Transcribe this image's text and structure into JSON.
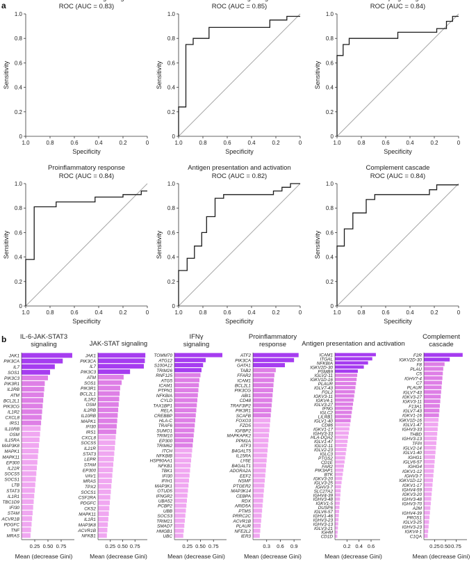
{
  "panel_labels": [
    "a",
    "b"
  ],
  "colors": {
    "roc_line": "#1a1a1a",
    "diagonal": "#a6a6a6",
    "axis": "#333333",
    "bar_top": "#a63cf0",
    "bar_mid": "#de7fe6",
    "bar_low": "#f0a7f1"
  },
  "chart_data": [
    {
      "type": "line",
      "id": "roc-1",
      "title": "IL-6-JAK-STAT3 signaling",
      "subtitle": "ROC (AUC = 0.83)",
      "xlabel": "Specificity",
      "ylabel": "Sensitivity",
      "xlim": [
        1.0,
        0.0
      ],
      "ylim": [
        0,
        1
      ],
      "xticks": [
        "1.0",
        "0.8",
        "0.6",
        "0.4",
        "0.2",
        "0"
      ],
      "yticks": [
        "0",
        "0.2",
        "0.4",
        "0.6",
        "0.8",
        "1.0"
      ],
      "points": []
    },
    {
      "type": "line",
      "id": "roc-2",
      "title": "JAK-STAT signaling",
      "subtitle": "ROC (AUC = 0.85)",
      "xlabel": "Specificity",
      "ylabel": "Sensitivity",
      "xlim": [
        1.0,
        0.0
      ],
      "ylim": [
        0,
        1
      ],
      "xticks": [
        "1.0",
        "0.8",
        "0.6",
        "0.4",
        "0.2",
        "0"
      ],
      "yticks": [
        "0",
        "0.2",
        "0.4",
        "0.6",
        "0.8",
        "1.0"
      ],
      "points": [
        [
          1.0,
          0
        ],
        [
          1.0,
          0.24
        ],
        [
          0.94,
          0.24
        ],
        [
          0.94,
          0.75
        ],
        [
          0.88,
          0.75
        ],
        [
          0.88,
          0.8
        ],
        [
          0.75,
          0.8
        ],
        [
          0.75,
          0.89
        ],
        [
          0.25,
          0.89
        ],
        [
          0.25,
          0.95
        ],
        [
          0.11,
          0.95
        ],
        [
          0.11,
          0.98
        ],
        [
          0,
          0.98
        ]
      ]
    },
    {
      "type": "line",
      "id": "roc-3",
      "title": "IFNγ signaling",
      "subtitle": "ROC (AUC = 0.84)",
      "xlabel": "Specificity",
      "ylabel": "Sensitivity",
      "xlim": [
        1.0,
        0.0
      ],
      "ylim": [
        0,
        1
      ],
      "xticks": [
        "1.0",
        "0.8",
        "0.6",
        "0.4",
        "0.2",
        "0"
      ],
      "yticks": [
        "0",
        "0.2",
        "0.4",
        "0.6",
        "0.8",
        "1.0"
      ],
      "points": [
        [
          1.0,
          0
        ],
        [
          1.0,
          0.66
        ],
        [
          0.95,
          0.66
        ],
        [
          0.95,
          0.75
        ],
        [
          0.9,
          0.75
        ],
        [
          0.9,
          0.8
        ],
        [
          0.5,
          0.8
        ],
        [
          0.5,
          0.85
        ],
        [
          0.18,
          0.85
        ],
        [
          0.18,
          0.88
        ],
        [
          0.1,
          0.88
        ],
        [
          0.1,
          0.94
        ],
        [
          0.05,
          0.94
        ],
        [
          0.05,
          0.98
        ],
        [
          0,
          0.98
        ]
      ]
    },
    {
      "type": "line",
      "id": "roc-4",
      "title": "Proinflammatory response",
      "subtitle": "ROC (AUC = 0.84)",
      "xlabel": "Specificity",
      "ylabel": "Sensitivity",
      "xlim": [
        1.0,
        0.0
      ],
      "ylim": [
        0,
        1
      ],
      "xticks": [
        "1.0",
        "0.8",
        "0.6",
        "0.4",
        "0.2",
        "0"
      ],
      "yticks": [
        "0",
        "0.2",
        "0.4",
        "0.6",
        "0.8",
        "1.0"
      ],
      "points": [
        [
          1.0,
          0
        ],
        [
          1.0,
          0.38
        ],
        [
          0.93,
          0.38
        ],
        [
          0.93,
          0.81
        ],
        [
          0.75,
          0.81
        ],
        [
          0.75,
          0.85
        ],
        [
          0.43,
          0.85
        ],
        [
          0.43,
          0.89
        ],
        [
          0.2,
          0.89
        ],
        [
          0.2,
          0.91
        ],
        [
          0.05,
          0.91
        ],
        [
          0.05,
          0.94
        ],
        [
          0,
          0.94
        ]
      ]
    },
    {
      "type": "line",
      "id": "roc-5",
      "title": "Antigen presentation and activation",
      "subtitle": "ROC (AUC = 0.82)",
      "xlabel": "Specificity",
      "ylabel": "Sensitivity",
      "xlim": [
        1.0,
        0.0
      ],
      "ylim": [
        0,
        1
      ],
      "xticks": [
        "1.0",
        "0.8",
        "0.6",
        "0.4",
        "0.2",
        "0"
      ],
      "yticks": [
        "0",
        "0.2",
        "0.4",
        "0.6",
        "0.8",
        "1.0"
      ],
      "points": [
        [
          1.0,
          0
        ],
        [
          1.0,
          0.29
        ],
        [
          0.93,
          0.29
        ],
        [
          0.93,
          0.39
        ],
        [
          0.87,
          0.39
        ],
        [
          0.87,
          0.49
        ],
        [
          0.81,
          0.49
        ],
        [
          0.81,
          0.6
        ],
        [
          0.77,
          0.6
        ],
        [
          0.77,
          0.73
        ],
        [
          0.7,
          0.73
        ],
        [
          0.7,
          0.88
        ],
        [
          0.63,
          0.88
        ],
        [
          0.63,
          0.91
        ],
        [
          0.22,
          0.91
        ],
        [
          0.22,
          0.94
        ],
        [
          0.15,
          0.94
        ],
        [
          0.15,
          0.97
        ],
        [
          0.08,
          0.97
        ],
        [
          0.08,
          1.0
        ],
        [
          0,
          1.0
        ]
      ]
    },
    {
      "type": "line",
      "id": "roc-6",
      "title": "Complement cascade",
      "subtitle": "ROC (AUC = 0.84)",
      "xlabel": "Specificity",
      "ylabel": "Sensitivity",
      "xlim": [
        1.0,
        0.0
      ],
      "ylim": [
        0,
        1
      ],
      "xticks": [
        "1.0",
        "0.8",
        "0.6",
        "0.4",
        "0.2",
        "0"
      ],
      "yticks": [
        "0",
        "0.2",
        "0.4",
        "0.6",
        "0.8",
        "1.0"
      ],
      "points": [
        [
          1.0,
          0
        ],
        [
          1.0,
          0.49
        ],
        [
          0.94,
          0.49
        ],
        [
          0.94,
          0.63
        ],
        [
          0.87,
          0.63
        ],
        [
          0.87,
          0.76
        ],
        [
          0.76,
          0.76
        ],
        [
          0.76,
          0.87
        ],
        [
          0.69,
          0.87
        ],
        [
          0.69,
          0.91
        ],
        [
          0.24,
          0.91
        ],
        [
          0.24,
          0.95
        ],
        [
          0.18,
          0.95
        ],
        [
          0.18,
          0.99
        ],
        [
          0,
          0.99
        ]
      ]
    },
    {
      "type": "bar",
      "id": "gini-1",
      "orientation": "horizontal",
      "title": "IL-6-JAK-STAT3 signaling",
      "xlabel": "Mean (decrease Gini)",
      "xlim": [
        0,
        1.0
      ],
      "xticks": [
        "0.25",
        "0.50",
        "0.75"
      ],
      "categories": [
        "JAK1",
        "PIK3CA",
        "IL7",
        "SOS1",
        "PIK3C3",
        "PIK3R1",
        "IL2RB",
        "ATM",
        "BCL2L1",
        "PIK3CG",
        "IL1R2",
        "CXCL8",
        "IRS1",
        "IL10RB",
        "OSM",
        "IL15RA",
        "MAP3K8",
        "MAPK1",
        "MAPK11",
        "EP300",
        "IL21R",
        "SOCS5",
        "SOCS1",
        "LTB",
        "STAT3",
        "IL1R1",
        "TBC1D9",
        "IFI30",
        "STAM",
        "ACVR1B",
        "PDGFC",
        "TNF",
        "MRAS"
      ],
      "values": [
        0.96,
        0.78,
        0.63,
        0.54,
        0.5,
        0.44,
        0.43,
        0.42,
        0.41,
        0.4,
        0.39,
        0.38,
        0.37,
        0.36,
        0.35,
        0.34,
        0.33,
        0.32,
        0.31,
        0.3,
        0.29,
        0.28,
        0.27,
        0.26,
        0.25,
        0.24,
        0.23,
        0.22,
        0.21,
        0.2,
        0.19,
        0.18,
        0.17
      ]
    },
    {
      "type": "bar",
      "id": "gini-2",
      "orientation": "horizontal",
      "title": "JAK-STAT signaling",
      "xlabel": "Mean (decrease Gini)",
      "xlim": [
        0,
        1.0
      ],
      "xticks": [
        "0.25",
        "0.50",
        "0.75"
      ],
      "categories": [
        "JAK1",
        "PIK3CA",
        "IL7",
        "PIK3C3",
        "ATM",
        "SOS1",
        "PIK3R1",
        "BCL2L1",
        "IL1R2",
        "OSM",
        "IL2RB",
        "IL10RB",
        "MAPK1",
        "IFI30",
        "IRS1",
        "CXCL8",
        "SOCS5",
        "IL21R",
        "STAT3",
        "LEPR",
        "STAM",
        "EP300",
        "VAV1",
        "MRAS",
        "TPX2",
        "SOCS1",
        "CSF2RA",
        "PDGFC",
        "CKS2",
        "MAPK11",
        "IL1R1",
        "MAP3K8",
        "ACVR1B",
        "NFKB1"
      ],
      "values": [
        0.96,
        0.95,
        0.93,
        0.65,
        0.52,
        0.48,
        0.45,
        0.44,
        0.43,
        0.42,
        0.41,
        0.4,
        0.39,
        0.38,
        0.37,
        0.36,
        0.35,
        0.34,
        0.33,
        0.32,
        0.31,
        0.3,
        0.29,
        0.28,
        0.27,
        0.26,
        0.25,
        0.24,
        0.23,
        0.22,
        0.21,
        0.2,
        0.19,
        0.18
      ]
    },
    {
      "type": "bar",
      "id": "gini-3",
      "orientation": "horizontal",
      "title": "IFNγ signaling",
      "xlabel": "Mean (decrease Gini)",
      "xlim": [
        0,
        1.0
      ],
      "xticks": [
        "0.25",
        "0.50",
        "0.75"
      ],
      "categories": [
        "TOMM70",
        "ATG12",
        "S100A12",
        "TRIM26",
        "RNF125",
        "ATG5",
        "ICAM1",
        "PTPN1",
        "NFKBIA",
        "CYLD",
        "TAX1BP1",
        "RELA",
        "CREBBP",
        "HLA-C",
        "TRAF6",
        "SUMO1",
        "TRIM10",
        "EP300",
        "TRIM62",
        "ITCH",
        "NFKBIB",
        "HSP90AA1",
        "NFKB1",
        "TBK1",
        "IFI30",
        "IFIH1",
        "MAP3K1",
        "OTUD5",
        "IFNGR2",
        "UBA52",
        "PCBP2",
        "UBB",
        "SOCS3",
        "TRIM21",
        "SMAD7",
        "HMGB1",
        "UBC"
      ],
      "values": [
        0.92,
        0.6,
        0.55,
        0.52,
        0.5,
        0.48,
        0.47,
        0.46,
        0.45,
        0.44,
        0.43,
        0.42,
        0.41,
        0.4,
        0.39,
        0.38,
        0.37,
        0.36,
        0.35,
        0.34,
        0.33,
        0.32,
        0.31,
        0.3,
        0.29,
        0.28,
        0.27,
        0.26,
        0.25,
        0.24,
        0.23,
        0.22,
        0.21,
        0.2,
        0.19,
        0.18,
        0.17
      ]
    },
    {
      "type": "bar",
      "id": "gini-4",
      "orientation": "horizontal",
      "title": "Proinflammatory response",
      "xlabel": "Mean (decrease Gini)",
      "xlim": [
        0,
        1.05
      ],
      "xticks": [
        "0.3",
        "0.6",
        "0.9"
      ],
      "categories": [
        "ATF2",
        "PIK3CA",
        "GATA1",
        "TAB2",
        "FFAR2",
        "ICAM1",
        "BCL2L1",
        "PIK3CG",
        "ABI1",
        "CD48",
        "TRAF3IP2",
        "PIK3R1",
        "SCAFB",
        "FOXO3",
        "FZD5",
        "IGFBP2",
        "MAPKAPK2",
        "PPM1A",
        "ATF3",
        "B4GALT5",
        "IL15RA",
        "LY6E",
        "B4GALT1",
        "ADORA2A",
        "EEF2",
        "NSMF",
        "PTGER2",
        "MAP3K14",
        "CEBPA",
        "RDX",
        "ARID5A",
        "PTMS",
        "PRRC2C",
        "ACVR1B",
        "PLAUR",
        "NFE2L2",
        "IER3"
      ],
      "values": [
        1.0,
        0.9,
        0.7,
        0.5,
        0.47,
        0.46,
        0.45,
        0.44,
        0.43,
        0.42,
        0.41,
        0.4,
        0.39,
        0.38,
        0.37,
        0.36,
        0.35,
        0.34,
        0.33,
        0.32,
        0.31,
        0.3,
        0.29,
        0.28,
        0.27,
        0.26,
        0.25,
        0.24,
        0.23,
        0.22,
        0.21,
        0.2,
        0.19,
        0.18,
        0.17,
        0.16,
        0.15
      ]
    },
    {
      "type": "bar",
      "id": "gini-5",
      "orientation": "horizontal",
      "title": "Antigen presentation and activation",
      "xlabel": "Mean (decrease Gini)",
      "xlim": [
        0,
        0.75
      ],
      "xticks": [
        "0.2",
        "0.4",
        "0.6"
      ],
      "categories": [
        "ICAM1",
        "ITGAL",
        "NFKBIA",
        "IGKV2D-30",
        "PSMB9",
        "IGLV2-11",
        "IGKV1D-16",
        "PLAUR",
        "IGLV7-43",
        "FGL2",
        "IGKV3-11",
        "IGKV4-1",
        "IGLV3-27",
        "IFNG",
        "IGLC2",
        "LILRB1",
        "IGLV1-40",
        "CD86",
        "IGKV1-17",
        "IGHV3-33",
        "HLA-DQA2",
        "IGLV1-47",
        "IGLV2-11",
        "IGLV2-23",
        "IGLC3",
        "PTGS2",
        "CD1E",
        "FAR2",
        "PIK3AP1",
        "BTK",
        "IGKV3-20",
        "IGLV3-25",
        "IGHV3-7",
        "SLC27A2",
        "IGHV4-39",
        "IGHV3-48",
        "IGKV1-5",
        "DUSP6",
        "IGLV6-57",
        "IGHV1-46",
        "IGHV3-23",
        "IGHV3-13",
        "IGLV3-21",
        "IGHM",
        "CD1D"
      ],
      "values": [
        0.68,
        0.62,
        0.55,
        0.48,
        0.38,
        0.37,
        0.36,
        0.35,
        0.34,
        0.33,
        0.32,
        0.31,
        0.3,
        0.29,
        0.28,
        0.27,
        0.26,
        0.25,
        0.24,
        0.23,
        0.22,
        0.21,
        0.2,
        0.19,
        0.18,
        0.17,
        0.16,
        0.15,
        0.14,
        0.13,
        0.12,
        0.11,
        0.1,
        0.095,
        0.09,
        0.085,
        0.08,
        0.075,
        0.07,
        0.065,
        0.06,
        0.055,
        0.05,
        0.045,
        0.04
      ]
    },
    {
      "type": "bar",
      "id": "gini-6",
      "orientation": "horizontal",
      "title": "Complement cascade",
      "xlabel": "Mean (decrease Gini)",
      "xlim": [
        0,
        1.0
      ],
      "xticks": [
        "0.25",
        "0.50",
        "0.75"
      ],
      "categories": [
        "F2R",
        "IGKV2D-30",
        "F8",
        "PLAU",
        "C5",
        "IGHV7-4",
        "C7",
        "PLAUR",
        "IGLV7-43",
        "IGKV3-27",
        "IGKV3-11",
        "F13A1",
        "IGLV7-43",
        "IGKV1-16",
        "IGKV1D-16",
        "IGLV1-47",
        "IGHV3-33",
        "THBD",
        "IGHV3-13",
        "TFPI",
        "IGLV2-14",
        "IGLV1-40",
        "IGHG1",
        "IGLV6-57",
        "IGHG4",
        "IGKV1-12",
        "IGHV3-7",
        "IGKV1D-12",
        "IGKV1-17",
        "IGHV4-59",
        "IGKV3-20",
        "IGHV3-48",
        "IGHV3-70",
        "A2M",
        "IGHV4-39",
        "PROS1",
        "IGLV3-25",
        "IGHV3-23",
        "IGKV4-1",
        "C1QA"
      ],
      "values": [
        0.9,
        0.6,
        0.48,
        0.45,
        0.44,
        0.43,
        0.42,
        0.41,
        0.4,
        0.39,
        0.38,
        0.37,
        0.36,
        0.35,
        0.34,
        0.33,
        0.32,
        0.31,
        0.3,
        0.29,
        0.28,
        0.27,
        0.26,
        0.25,
        0.24,
        0.23,
        0.22,
        0.21,
        0.2,
        0.19,
        0.18,
        0.17,
        0.16,
        0.15,
        0.14,
        0.13,
        0.12,
        0.11,
        0.1,
        0.09
      ]
    }
  ]
}
